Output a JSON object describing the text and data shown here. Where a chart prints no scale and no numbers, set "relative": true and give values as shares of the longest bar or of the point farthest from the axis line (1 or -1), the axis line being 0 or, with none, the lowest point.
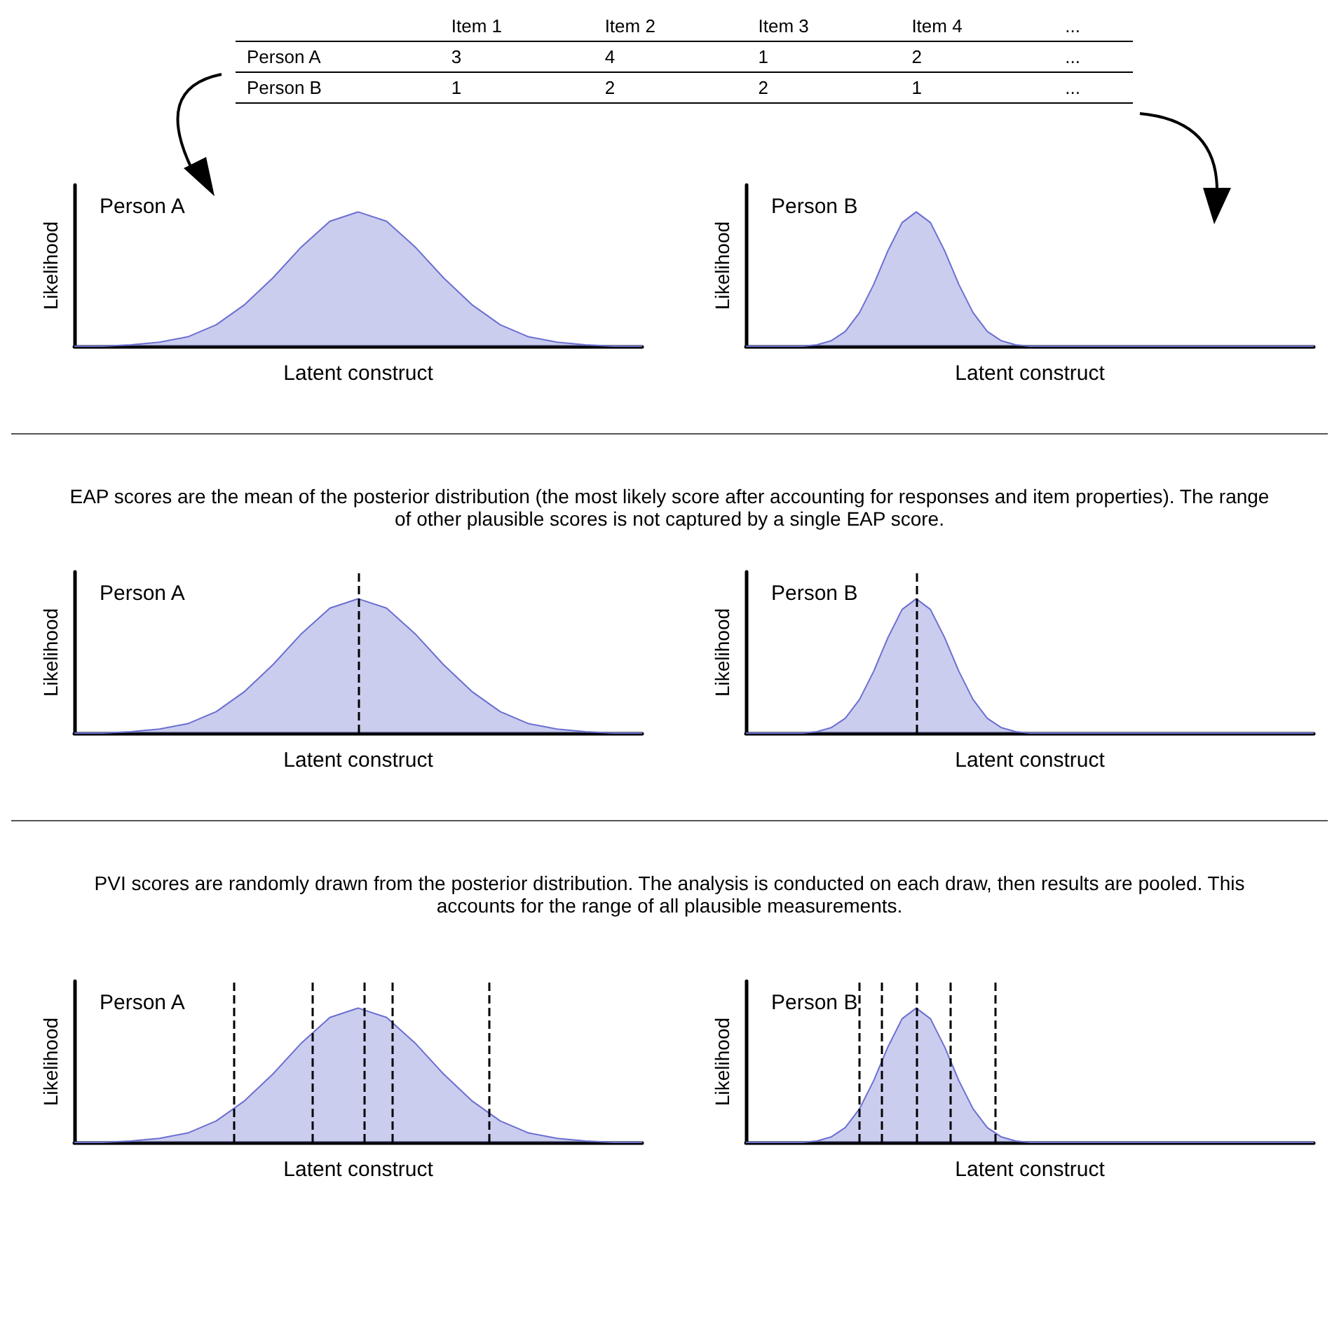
{
  "chart_data": [
    {
      "type": "other",
      "categories": [
        "Item 1",
        "Item 2",
        "Item 3",
        "Item 4",
        "..."
      ],
      "y_categories": [
        "Person A",
        "Person B"
      ],
      "cell_labels": [
        [
          "3",
          "4",
          "1",
          "2",
          "..."
        ],
        [
          "1",
          "2",
          "2",
          "1",
          "..."
        ]
      ]
    },
    {
      "type": "area",
      "relative": true,
      "xlabel": "Latent construct",
      "ylabel": "Likelihood",
      "tick_labels": false,
      "categories": [
        null,
        null,
        null,
        null,
        null,
        null,
        null,
        null,
        null,
        null,
        null,
        null,
        null,
        null,
        null,
        null,
        null,
        null,
        null,
        null,
        null
      ],
      "series": [
        {
          "name": "Person A",
          "color": "#6b6fd0",
          "values": [
            0,
            0,
            0.01,
            0.03,
            0.07,
            0.16,
            0.31,
            0.51,
            0.74,
            0.93,
            1,
            0.93,
            0.74,
            0.51,
            0.31,
            0.16,
            0.07,
            0.03,
            0.01,
            0,
            0
          ]
        }
      ]
    },
    {
      "type": "area",
      "relative": true,
      "xlabel": "Latent construct",
      "ylabel": "Likelihood",
      "tick_labels": false,
      "categories": [
        null,
        null,
        null,
        null,
        null,
        null,
        null,
        null,
        null,
        null,
        null,
        null,
        null,
        null,
        null,
        null,
        null,
        null,
        null,
        null,
        null,
        null,
        null,
        null,
        null,
        null,
        null,
        null,
        null,
        null,
        null,
        null,
        null,
        null,
        null,
        null,
        null,
        null,
        null,
        null,
        null
      ],
      "series": [
        {
          "name": "Person B",
          "color": "#6b6fd0",
          "values": [
            0,
            0,
            0,
            0,
            0,
            0.01,
            0.04,
            0.11,
            0.25,
            0.46,
            0.71,
            0.92,
            1,
            0.92,
            0.71,
            0.46,
            0.25,
            0.11,
            0.04,
            0.01,
            0,
            0,
            0,
            0,
            0,
            0,
            0,
            0,
            0,
            0,
            0,
            0,
            0,
            0,
            0,
            0,
            0,
            0,
            0,
            0,
            0
          ]
        }
      ]
    },
    {
      "type": "area",
      "relative": true,
      "title": "EAP scores are the mean of the posterior distribution (the most likely score after accounting for responses and item properties). The range of other plausible scores is not captured by a single EAP score.",
      "xlabel": "Latent construct",
      "ylabel": "Likelihood",
      "tick_labels": false,
      "categories": [
        null,
        null,
        null,
        null,
        null,
        null,
        null,
        null,
        null,
        null,
        null,
        null,
        null,
        null,
        null,
        null,
        null,
        null,
        null,
        null,
        null
      ],
      "series": [
        {
          "name": "Person A",
          "color": "#6b6fd0",
          "values": [
            0,
            0,
            0.01,
            0.03,
            0.07,
            0.16,
            0.31,
            0.51,
            0.74,
            0.93,
            1,
            0.93,
            0.74,
            0.51,
            0.31,
            0.16,
            0.07,
            0.03,
            0.01,
            0,
            0
          ]
        }
      ]
    },
    {
      "type": "area",
      "relative": true,
      "xlabel": "Latent construct",
      "ylabel": "Likelihood",
      "tick_labels": false,
      "categories": [
        null,
        null,
        null,
        null,
        null,
        null,
        null,
        null,
        null,
        null,
        null,
        null,
        null,
        null,
        null,
        null,
        null,
        null,
        null,
        null,
        null,
        null,
        null,
        null,
        null,
        null,
        null,
        null,
        null,
        null,
        null,
        null,
        null,
        null,
        null,
        null,
        null,
        null,
        null,
        null,
        null
      ],
      "series": [
        {
          "name": "Person B",
          "color": "#6b6fd0",
          "values": [
            0,
            0,
            0,
            0,
            0,
            0.01,
            0.04,
            0.11,
            0.25,
            0.46,
            0.71,
            0.92,
            1,
            0.92,
            0.71,
            0.46,
            0.25,
            0.11,
            0.04,
            0.01,
            0,
            0,
            0,
            0,
            0,
            0,
            0,
            0,
            0,
            0,
            0,
            0,
            0,
            0,
            0,
            0,
            0,
            0,
            0,
            0,
            0
          ]
        }
      ]
    },
    {
      "type": "area",
      "relative": true,
      "title": "PVI scores are randomly drawn from the posterior distribution. The analysis is conducted on each draw, then results are pooled. This accounts for the range of all plausible measurements.",
      "xlabel": "Latent construct",
      "ylabel": "Likelihood",
      "tick_labels": false,
      "categories": [
        null,
        null,
        null,
        null,
        null,
        null,
        null,
        null,
        null,
        null,
        null,
        null,
        null,
        null,
        null,
        null,
        null,
        null,
        null,
        null,
        null
      ],
      "series": [
        {
          "name": "Person A",
          "color": "#6b6fd0",
          "values": [
            0,
            0,
            0.01,
            0.03,
            0.07,
            0.16,
            0.31,
            0.51,
            0.74,
            0.93,
            1,
            0.93,
            0.74,
            0.51,
            0.31,
            0.16,
            0.07,
            0.03,
            0.01,
            0,
            0
          ]
        }
      ]
    },
    {
      "type": "area",
      "relative": true,
      "xlabel": "Latent construct",
      "ylabel": "Likelihood",
      "tick_labels": false,
      "categories": [
        null,
        null,
        null,
        null,
        null,
        null,
        null,
        null,
        null,
        null,
        null,
        null,
        null,
        null,
        null,
        null,
        null,
        null,
        null,
        null,
        null,
        null,
        null,
        null,
        null,
        null,
        null,
        null,
        null,
        null,
        null,
        null,
        null,
        null,
        null,
        null,
        null,
        null,
        null,
        null,
        null
      ],
      "series": [
        {
          "name": "Person B",
          "color": "#6b6fd0",
          "values": [
            0,
            0,
            0,
            0,
            0,
            0.01,
            0.04,
            0.11,
            0.25,
            0.46,
            0.71,
            0.92,
            1,
            0.92,
            0.71,
            0.46,
            0.25,
            0.11,
            0.04,
            0.01,
            0,
            0,
            0,
            0,
            0,
            0,
            0,
            0,
            0,
            0,
            0,
            0,
            0,
            0,
            0,
            0,
            0,
            0,
            0,
            0,
            0
          ]
        }
      ]
    }
  ]
}
